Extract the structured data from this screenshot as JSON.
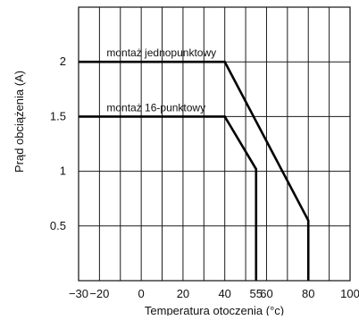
{
  "chart_data": {
    "type": "line",
    "xlabel": "Temperatura otoczenia (°c)",
    "ylabel": "Prąd obciążenia (A)",
    "xlim": [
      -30,
      100
    ],
    "ylim": [
      0,
      2.5
    ],
    "x_ticks": [
      -30,
      -20,
      0,
      20,
      40,
      55,
      60,
      80,
      100
    ],
    "x_tick_labels": [
      "−30",
      "−20",
      "0",
      "20",
      "40",
      "55",
      "60",
      "80",
      "100"
    ],
    "y_ticks": [
      0.5,
      1,
      1.5,
      2
    ],
    "y_tick_labels": [
      "0.5",
      "1",
      "1.5",
      "2"
    ],
    "x_gridlines": [
      -20,
      -10,
      0,
      10,
      20,
      30,
      40,
      50,
      60,
      70,
      80,
      90,
      100
    ],
    "y_gridlines": [
      0.5,
      1,
      1.5,
      2
    ],
    "grid": true,
    "series": [
      {
        "name": "montaż jednopunktowy",
        "x": [
          -30,
          40,
          80,
          80
        ],
        "y": [
          2,
          2,
          0.55,
          0
        ]
      },
      {
        "name": "montaż 16-punktowy",
        "x": [
          -30,
          40,
          55,
          55
        ],
        "y": [
          1.5,
          1.5,
          1.02,
          0
        ]
      }
    ]
  }
}
